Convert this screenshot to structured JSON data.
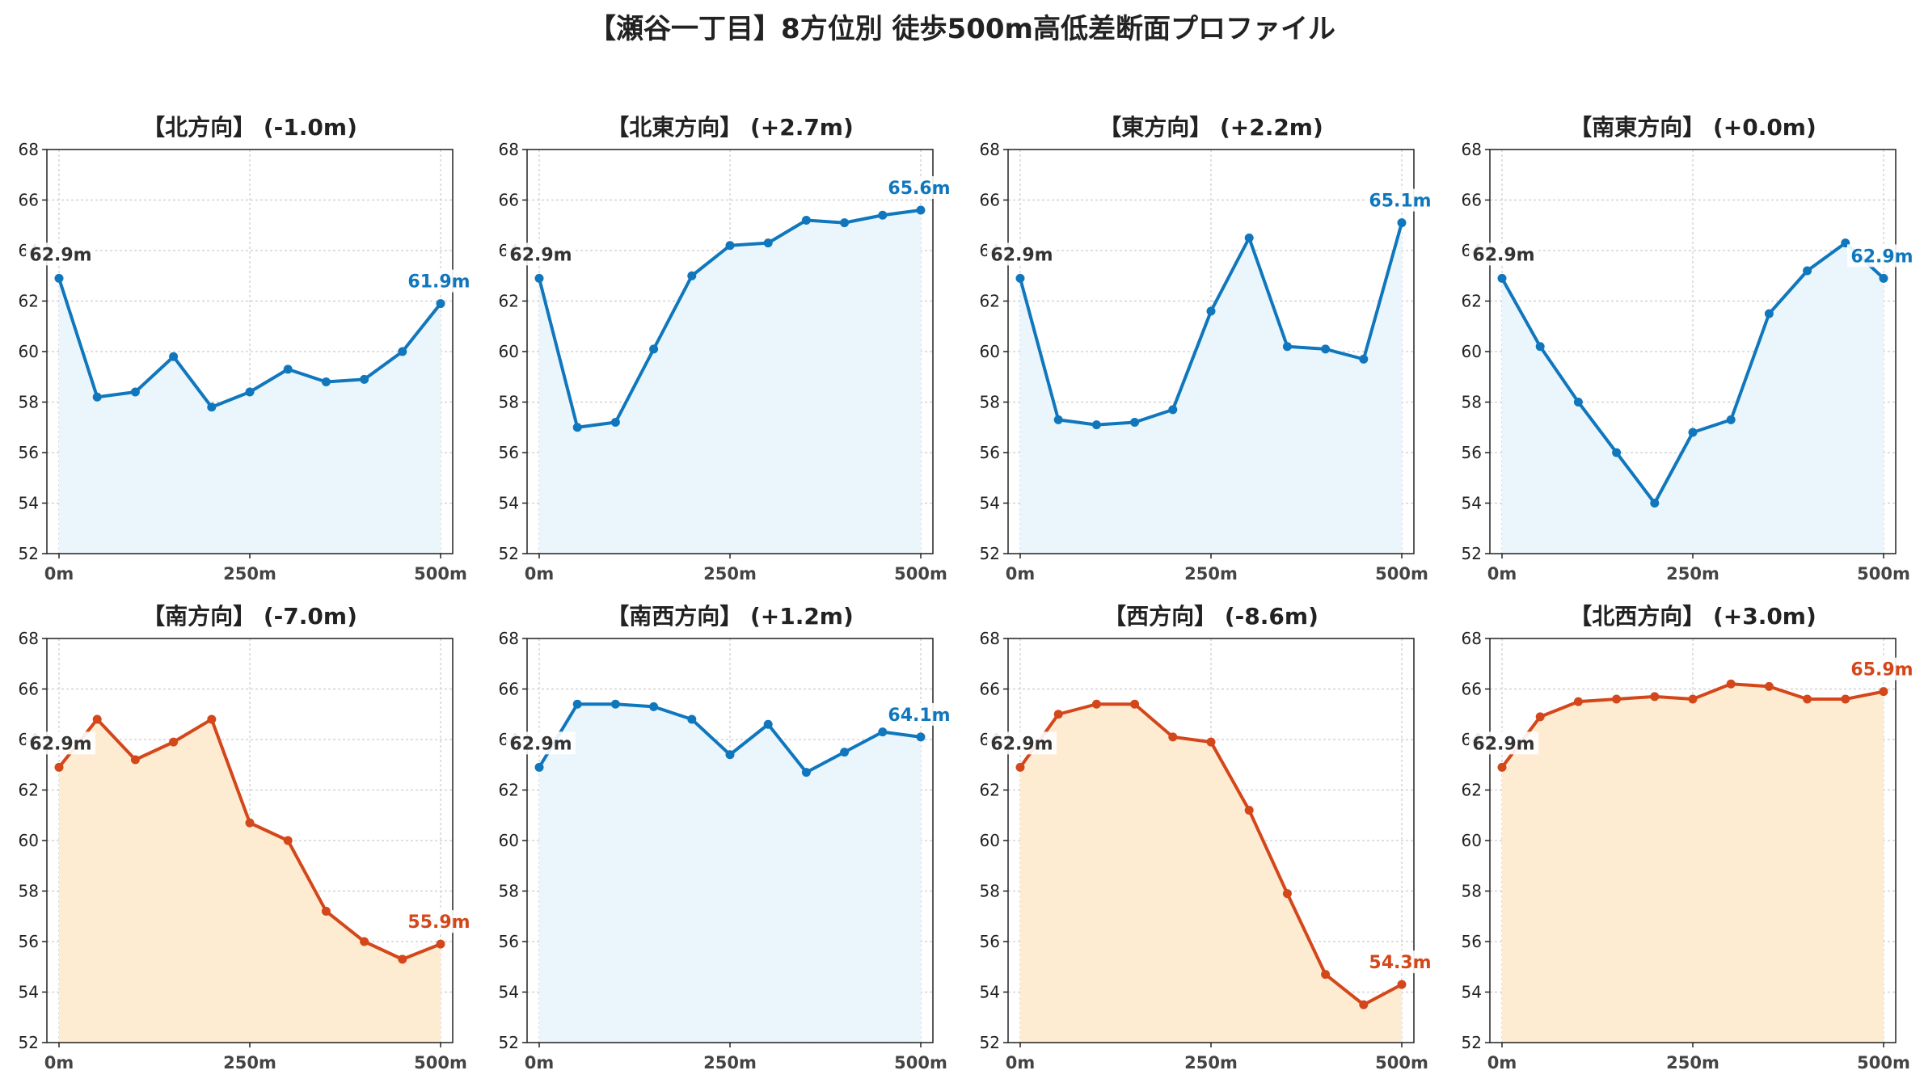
{
  "title": "【瀬谷一丁目】8方位別 徒歩500m高低差断面プロファイル",
  "colors": {
    "up_line": "#1077bd",
    "up_fill": "#eaf6fb",
    "down_line": "#d4471b",
    "down_fill": "#feecd2",
    "start_label": "#333333",
    "grid": "#cccccc"
  },
  "chart_data": [
    {
      "type": "area",
      "title": "【北方向】 (-1.0m)",
      "scheme": "up",
      "x": [
        0,
        50,
        100,
        150,
        200,
        250,
        300,
        350,
        400,
        450,
        500
      ],
      "y": [
        62.9,
        58.2,
        58.4,
        59.8,
        57.8,
        58.4,
        59.3,
        58.8,
        58.9,
        60.0,
        61.9
      ],
      "start_label": "62.9m",
      "end_label": "61.9m",
      "xticks": [
        "0m",
        "250m",
        "500m"
      ],
      "yticks": [
        52,
        54,
        56,
        58,
        60,
        62,
        64,
        66,
        68
      ],
      "ylim": [
        52,
        68
      ],
      "xlim": [
        0,
        500
      ],
      "grid": true
    },
    {
      "type": "area",
      "title": "【北東方向】 (+2.7m)",
      "scheme": "up",
      "x": [
        0,
        50,
        100,
        150,
        200,
        250,
        300,
        350,
        400,
        450,
        500
      ],
      "y": [
        62.9,
        57.0,
        57.2,
        60.1,
        63.0,
        64.2,
        64.3,
        65.2,
        65.1,
        65.4,
        65.6
      ],
      "start_label": "62.9m",
      "end_label": "65.6m",
      "xticks": [
        "0m",
        "250m",
        "500m"
      ],
      "yticks": [
        52,
        54,
        56,
        58,
        60,
        62,
        64,
        66,
        68
      ],
      "ylim": [
        52,
        68
      ],
      "xlim": [
        0,
        500
      ],
      "grid": true
    },
    {
      "type": "area",
      "title": "【東方向】 (+2.2m)",
      "scheme": "up",
      "x": [
        0,
        50,
        100,
        150,
        200,
        250,
        300,
        350,
        400,
        450,
        500
      ],
      "y": [
        62.9,
        57.3,
        57.1,
        57.2,
        57.7,
        61.6,
        64.5,
        60.2,
        60.1,
        59.7,
        65.1
      ],
      "start_label": "62.9m",
      "end_label": "65.1m",
      "xticks": [
        "0m",
        "250m",
        "500m"
      ],
      "yticks": [
        52,
        54,
        56,
        58,
        60,
        62,
        64,
        66,
        68
      ],
      "ylim": [
        52,
        68
      ],
      "xlim": [
        0,
        500
      ],
      "grid": true
    },
    {
      "type": "area",
      "title": "【南東方向】 (+0.0m)",
      "scheme": "up",
      "x": [
        0,
        50,
        100,
        150,
        200,
        250,
        300,
        350,
        400,
        450,
        500
      ],
      "y": [
        62.9,
        60.2,
        58.0,
        56.0,
        54.0,
        56.8,
        57.3,
        61.5,
        63.2,
        64.3,
        62.9
      ],
      "start_label": "62.9m",
      "end_label": "62.9m",
      "xticks": [
        "0m",
        "250m",
        "500m"
      ],
      "yticks": [
        52,
        54,
        56,
        58,
        60,
        62,
        64,
        66,
        68
      ],
      "ylim": [
        52,
        68
      ],
      "xlim": [
        0,
        500
      ],
      "grid": true
    },
    {
      "type": "area",
      "title": "【南方向】 (-7.0m)",
      "scheme": "down",
      "x": [
        0,
        50,
        100,
        150,
        200,
        250,
        300,
        350,
        400,
        450,
        500
      ],
      "y": [
        62.9,
        64.8,
        63.2,
        63.9,
        64.8,
        60.7,
        60.0,
        57.2,
        56.0,
        55.3,
        55.9
      ],
      "start_label": "62.9m",
      "end_label": "55.9m",
      "xticks": [
        "0m",
        "250m",
        "500m"
      ],
      "yticks": [
        52,
        54,
        56,
        58,
        60,
        62,
        64,
        66,
        68
      ],
      "ylim": [
        52,
        68
      ],
      "xlim": [
        0,
        500
      ],
      "grid": true
    },
    {
      "type": "area",
      "title": "【南西方向】 (+1.2m)",
      "scheme": "up",
      "x": [
        0,
        50,
        100,
        150,
        200,
        250,
        300,
        350,
        400,
        450,
        500
      ],
      "y": [
        62.9,
        65.4,
        65.4,
        65.3,
        64.8,
        63.4,
        64.6,
        62.7,
        63.5,
        64.3,
        64.1
      ],
      "start_label": "62.9m",
      "end_label": "64.1m",
      "xticks": [
        "0m",
        "250m",
        "500m"
      ],
      "yticks": [
        52,
        54,
        56,
        58,
        60,
        62,
        64,
        66,
        68
      ],
      "ylim": [
        52,
        68
      ],
      "xlim": [
        0,
        500
      ],
      "grid": true
    },
    {
      "type": "area",
      "title": "【西方向】 (-8.6m)",
      "scheme": "down",
      "x": [
        0,
        50,
        100,
        150,
        200,
        250,
        300,
        350,
        400,
        450,
        500
      ],
      "y": [
        62.9,
        65.0,
        65.4,
        65.4,
        64.1,
        63.9,
        61.2,
        57.9,
        54.7,
        53.5,
        54.3
      ],
      "start_label": "62.9m",
      "end_label": "54.3m",
      "xticks": [
        "0m",
        "250m",
        "500m"
      ],
      "yticks": [
        52,
        54,
        56,
        58,
        60,
        62,
        64,
        66,
        68
      ],
      "ylim": [
        52,
        68
      ],
      "xlim": [
        0,
        500
      ],
      "grid": true
    },
    {
      "type": "area",
      "title": "【北西方向】 (+3.0m)",
      "scheme": "down",
      "x": [
        0,
        50,
        100,
        150,
        200,
        250,
        300,
        350,
        400,
        450,
        500
      ],
      "y": [
        62.9,
        64.9,
        65.5,
        65.6,
        65.7,
        65.6,
        66.2,
        66.1,
        65.6,
        65.6,
        65.9
      ],
      "start_label": "62.9m",
      "end_label": "65.9m",
      "xticks": [
        "0m",
        "250m",
        "500m"
      ],
      "yticks": [
        52,
        54,
        56,
        58,
        60,
        62,
        64,
        66,
        68
      ],
      "ylim": [
        52,
        68
      ],
      "xlim": [
        0,
        500
      ],
      "grid": true
    }
  ]
}
